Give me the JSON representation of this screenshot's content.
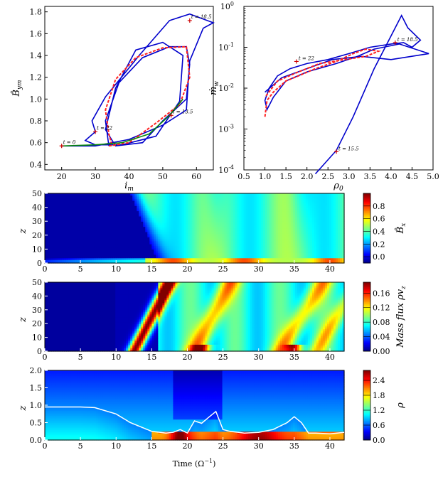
{
  "chart_data": [
    {
      "type": "line",
      "id": "bm-vs-im",
      "xlabel": "i_m",
      "ylabel": "B̂_ym",
      "xlim": [
        15,
        65
      ],
      "ylim": [
        0.35,
        1.85
      ],
      "xticks": [
        "20",
        "30",
        "40",
        "50",
        "60"
      ],
      "yticks": [
        "0.4",
        "0.6",
        "0.8",
        "1.0",
        "1.2",
        "1.4",
        "1.6",
        "1.8"
      ],
      "series": [
        {
          "color": "#0000cc",
          "points": [
            [
              20,
              0.57
            ],
            [
              30,
              0.57
            ],
            [
              40,
              0.63
            ],
            [
              50,
              0.76
            ],
            [
              57,
              0.9
            ],
            [
              58,
              1.35
            ],
            [
              62,
              1.65
            ],
            [
              65,
              1.7
            ],
            [
              58,
              1.78
            ],
            [
              52,
              1.72
            ],
            [
              43,
              1.4
            ],
            [
              33,
              1.02
            ],
            [
              29,
              0.8
            ],
            [
              30,
              0.7
            ],
            [
              27,
              0.62
            ],
            [
              30,
              0.58
            ],
            [
              38,
              0.58
            ],
            [
              48,
              0.66
            ],
            [
              55,
              0.98
            ],
            [
              56,
              1.4
            ],
            [
              50,
              1.52
            ],
            [
              42,
              1.45
            ],
            [
              36,
              1.1
            ],
            [
              33,
              0.72
            ],
            [
              36,
              0.57
            ],
            [
              44,
              0.6
            ],
            [
              50,
              0.8
            ],
            [
              57,
              1.0
            ],
            [
              58,
              1.32
            ],
            [
              57,
              1.48
            ],
            [
              52,
              1.48
            ],
            [
              44,
              1.38
            ],
            [
              37,
              1.15
            ],
            [
              33,
              0.8
            ],
            [
              34,
              0.57
            ]
          ]
        },
        {
          "color": "#ff2020",
          "dashed": true,
          "points": [
            [
              34,
              0.57
            ],
            [
              40,
              0.6
            ],
            [
              48,
              0.78
            ],
            [
              55,
              0.95
            ],
            [
              58,
              1.2
            ],
            [
              57,
              1.48
            ],
            [
              50,
              1.47
            ],
            [
              42,
              1.38
            ],
            [
              36,
              1.18
            ],
            [
              33,
              0.9
            ],
            [
              34,
              0.68
            ],
            [
              35,
              0.57
            ]
          ]
        },
        {
          "color": "#0a8a0a",
          "points": [
            [
              20,
              0.57
            ],
            [
              30,
              0.58
            ],
            [
              38,
              0.6
            ],
            [
              46,
              0.68
            ],
            [
              52,
              0.85
            ],
            [
              56,
              1.0
            ]
          ]
        }
      ],
      "annotations": [
        {
          "text": "t = 0",
          "x": 20,
          "y": 0.57
        },
        {
          "text": "t = 22",
          "x": 30,
          "y": 0.7
        },
        {
          "text": "t = 13.5",
          "x": 52.5,
          "y": 0.85
        },
        {
          "text": "t = 18.5",
          "x": 58,
          "y": 1.72
        }
      ]
    },
    {
      "type": "line",
      "id": "mw-vs-rho",
      "xlabel": "ρ_0",
      "ylabel": "ṁ_w",
      "xlim": [
        0.5,
        5.0
      ],
      "ylim_log10": [
        -4,
        0
      ],
      "yscale": "log",
      "xticks": [
        "0.5",
        "1.0",
        "1.5",
        "2.0",
        "2.5",
        "3.0",
        "3.5",
        "4.0",
        "4.5",
        "5.0"
      ],
      "yticks": [
        "10^-4",
        "10^-3",
        "10^-2",
        "10^-1",
        "10^0"
      ],
      "series": [
        {
          "color": "#0000cc",
          "points": [
            [
              2.2,
              8e-05
            ],
            [
              2.7,
              0.0003
            ],
            [
              3.1,
              0.002
            ],
            [
              3.6,
              0.03
            ],
            [
              4.1,
              0.3
            ],
            [
              4.25,
              0.6
            ],
            [
              4.4,
              0.3
            ],
            [
              4.7,
              0.15
            ],
            [
              4.5,
              0.1
            ],
            [
              4.3,
              0.13
            ],
            [
              4.0,
              0.12
            ],
            [
              3.5,
              0.1
            ],
            [
              3.0,
              0.07
            ],
            [
              2.5,
              0.05
            ],
            [
              2.0,
              0.04
            ],
            [
              1.6,
              0.03
            ],
            [
              1.3,
              0.02
            ],
            [
              1.1,
              0.01
            ],
            [
              1.0,
              0.005
            ],
            [
              1.05,
              0.003
            ],
            [
              1.2,
              0.006
            ],
            [
              1.5,
              0.015
            ],
            [
              2.0,
              0.025
            ],
            [
              2.7,
              0.04
            ],
            [
              3.2,
              0.06
            ],
            [
              3.6,
              0.09
            ],
            [
              4.2,
              0.12
            ],
            [
              4.9,
              0.07
            ],
            [
              4.0,
              0.05
            ],
            [
              3.3,
              0.06
            ],
            [
              2.6,
              0.05
            ],
            [
              2.0,
              0.03
            ],
            [
              1.4,
              0.018
            ],
            [
              1.0,
              0.008
            ]
          ]
        },
        {
          "color": "#ff2020",
          "dashed": true,
          "points": [
            [
              1.0,
              0.002
            ],
            [
              1.05,
              0.005
            ],
            [
              1.2,
              0.008
            ],
            [
              1.5,
              0.015
            ],
            [
              1.8,
              0.02
            ],
            [
              2.2,
              0.03
            ],
            [
              2.7,
              0.045
            ],
            [
              3.1,
              0.07
            ],
            [
              3.4,
              0.09
            ],
            [
              3.7,
              0.08
            ],
            [
              3.4,
              0.06
            ],
            [
              2.9,
              0.05
            ],
            [
              2.3,
              0.04
            ],
            [
              1.8,
              0.025
            ],
            [
              1.3,
              0.015
            ],
            [
              1.0,
              0.006
            ]
          ]
        }
      ],
      "annotations": [
        {
          "text": "t = 22",
          "x": 1.75,
          "y": 0.045
        },
        {
          "text": "t = 18.5",
          "x": 4.1,
          "y": 0.13
        },
        {
          "text": "t = 15.5",
          "x": 2.7,
          "y": 0.00028
        }
      ]
    },
    {
      "type": "heatmap",
      "id": "bx-map",
      "ylabel": "z",
      "xlim": [
        0,
        42
      ],
      "ylim": [
        0,
        50
      ],
      "xticks": [
        "0",
        "5",
        "10",
        "15",
        "20",
        "25",
        "30",
        "35",
        "40"
      ],
      "yticks": [
        "0",
        "10",
        "20",
        "30",
        "40",
        "50"
      ],
      "colorbar_label": "B̂_x",
      "colorbar_ticks": [
        "0.0",
        "0.2",
        "0.4",
        "0.6",
        "0.8"
      ],
      "colorbar_range": [
        -0.1,
        1.0
      ]
    },
    {
      "type": "heatmap",
      "id": "flux-map",
      "ylabel": "z",
      "xlim": [
        0,
        42
      ],
      "ylim": [
        0,
        50
      ],
      "xticks": [
        "0",
        "5",
        "10",
        "15",
        "20",
        "25",
        "30",
        "35",
        "40"
      ],
      "yticks": [
        "0",
        "10",
        "20",
        "30",
        "40",
        "50"
      ],
      "colorbar_label": "Mass flux ρv_z",
      "colorbar_ticks": [
        "0.00",
        "0.04",
        "0.08",
        "0.12",
        "0.16"
      ],
      "colorbar_range": [
        0.0,
        0.19
      ]
    },
    {
      "type": "heatmap",
      "id": "rho-map",
      "ylabel": "z",
      "xlabel": "Time (Ω^-1)",
      "xlim": [
        0,
        42
      ],
      "ylim": [
        0,
        2.0
      ],
      "xticks": [
        "0",
        "5",
        "10",
        "15",
        "20",
        "25",
        "30",
        "35",
        "40"
      ],
      "yticks": [
        "0.0",
        "0.5",
        "1.0",
        "1.5",
        "2.0"
      ],
      "colorbar_label": "ρ",
      "colorbar_ticks": [
        "0.0",
        "0.6",
        "1.2",
        "1.8",
        "2.4"
      ],
      "colorbar_range": [
        0.0,
        2.8
      ],
      "contour": [
        [
          0,
          0.95
        ],
        [
          5,
          0.95
        ],
        [
          7,
          0.93
        ],
        [
          10,
          0.75
        ],
        [
          12,
          0.5
        ],
        [
          15,
          0.25
        ],
        [
          17,
          0.2
        ],
        [
          18,
          0.22
        ],
        [
          19,
          0.3
        ],
        [
          20,
          0.2
        ],
        [
          21,
          0.55
        ],
        [
          22,
          0.48
        ],
        [
          23,
          0.65
        ],
        [
          24,
          0.82
        ],
        [
          25,
          0.3
        ],
        [
          26,
          0.25
        ],
        [
          28,
          0.2
        ],
        [
          30,
          0.22
        ],
        [
          32,
          0.3
        ],
        [
          34,
          0.5
        ],
        [
          35,
          0.67
        ],
        [
          36,
          0.5
        ],
        [
          37,
          0.2
        ],
        [
          38,
          0.2
        ],
        [
          40,
          0.18
        ],
        [
          42,
          0.22
        ]
      ]
    }
  ]
}
